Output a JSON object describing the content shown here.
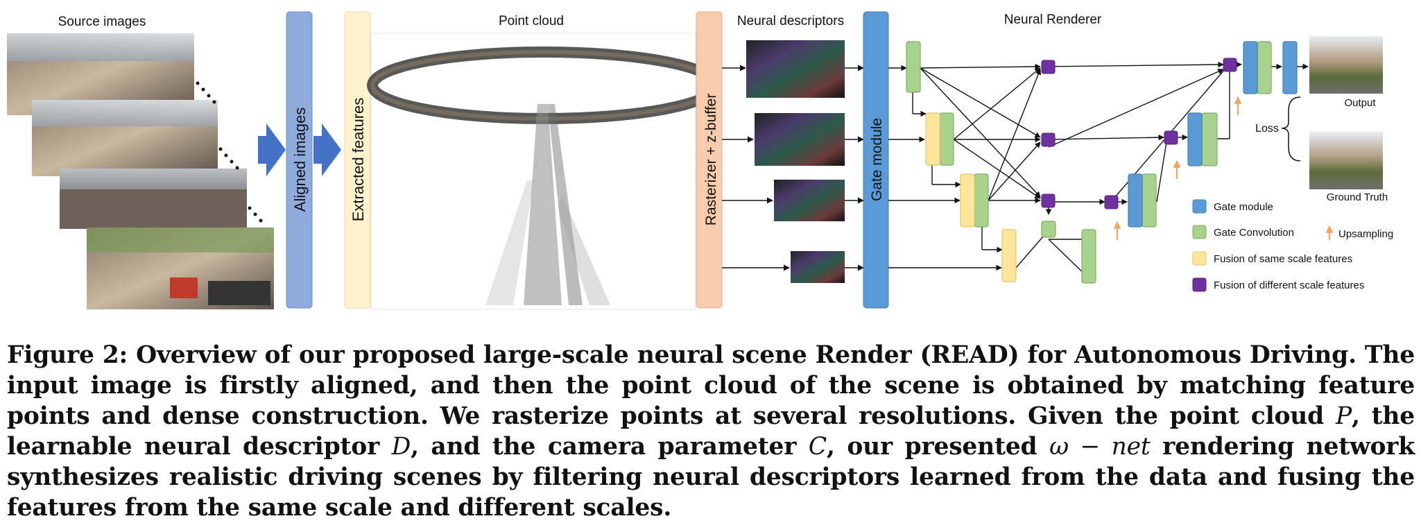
{
  "figure": {
    "labels": {
      "source_images": "Source images",
      "aligned_images": "Aligned images",
      "extracted_features": "Extracted features",
      "point_cloud": "Point cloud",
      "rasterizer": "Rasterizer + z-buffer",
      "neural_descriptors": "Neural descriptors",
      "gate_module": "Gate module",
      "neural_renderer": "Neural Renderer",
      "output": "Output",
      "ground_truth": "Ground Truth",
      "loss": "Loss"
    },
    "legend": {
      "gate_module": "Gate module",
      "gate_convolution": "Gate Convolution",
      "upsampling": "Upsampling",
      "fusion_same": "Fusion of same scale features",
      "fusion_diff": "Fusion of different scale features"
    },
    "colors": {
      "gate_module": "#5b9bd5",
      "gate_convolution": "#a9d18e",
      "fusion_same": "#ffe699",
      "fusion_diff": "#7030a0",
      "upsampling": "#f4a460",
      "aligned_bar": "#8faadc",
      "extracted_bar": "#fff2cc",
      "rasterizer_bar": "#f8cbad",
      "arrow": "#4472c4"
    }
  },
  "caption": {
    "prefix": "Figure 2: Overview of our proposed large-scale neural scene Render (READ) for Autonomous Driving. The input image is firstly aligned, and then the point cloud of the scene is obtained by matching feature points and dense construction. We rasterize points at several resolutions. Given the point cloud ",
    "var_p": "P",
    "mid1": ", the learnable neural descriptor ",
    "var_d": "D",
    "mid2": ", and the camera parameter ",
    "var_c": "C",
    "mid3": ", our presented ",
    "omega_net": "ω − net",
    "suffix": " rendering network synthesizes realistic driving scenes by filtering neural descriptors learned from the data and fusing the features from the same scale and different scales."
  }
}
